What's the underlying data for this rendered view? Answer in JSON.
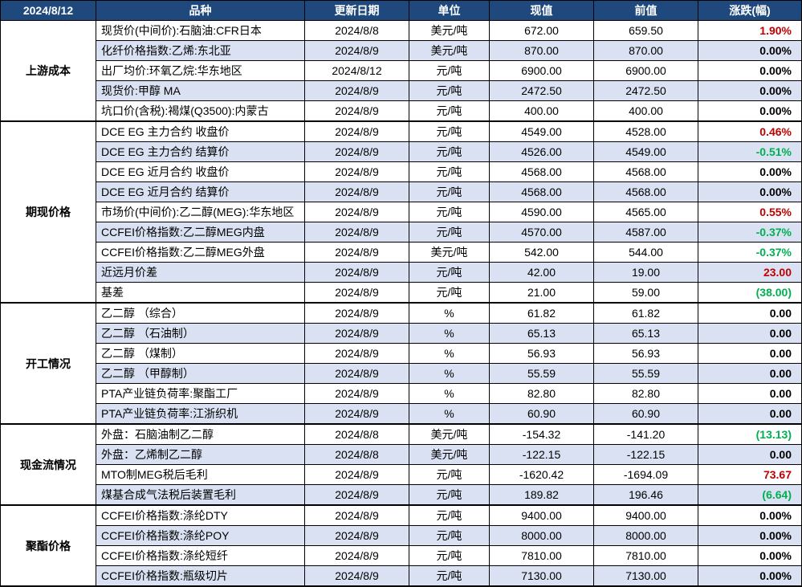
{
  "header": {
    "date": "2024/8/12",
    "cols": [
      "品种",
      "更新日期",
      "单位",
      "现值",
      "前值",
      "涨跌(幅)"
    ]
  },
  "colors": {
    "header_bg": "#1f497d",
    "header_fg": "#ffffff",
    "row_even": "#ffffff",
    "row_odd": "#d9e1f2",
    "up": "#c00000",
    "down": "#00b050",
    "flat": "#000000"
  },
  "groups": [
    {
      "cat": "上游成本",
      "rows": [
        {
          "name": "现货价(中间价):石脑油:CFR日本",
          "date": "2024/8/8",
          "unit": "美元/吨",
          "cur": "672.00",
          "prev": "659.50",
          "chg": "1.90%",
          "dir": "up"
        },
        {
          "name": "化纤价格指数:乙烯:东北亚",
          "date": "2024/8/9",
          "unit": "美元/吨",
          "cur": "870.00",
          "prev": "870.00",
          "chg": "0.00%",
          "dir": "flat"
        },
        {
          "name": "出厂均价:环氧乙烷:华东地区",
          "date": "2024/8/12",
          "unit": "元/吨",
          "cur": "6900.00",
          "prev": "6900.00",
          "chg": "0.00%",
          "dir": "flat"
        },
        {
          "name": "现货价:甲醇 MA",
          "date": "2024/8/9",
          "unit": "元/吨",
          "cur": "2472.50",
          "prev": "2472.50",
          "chg": "0.00%",
          "dir": "flat"
        },
        {
          "name": "坑口价(含税):褐煤(Q3500):内蒙古",
          "date": "2024/8/9",
          "unit": "元/吨",
          "cur": "400.00",
          "prev": "400.00",
          "chg": "0.00%",
          "dir": "flat"
        }
      ]
    },
    {
      "cat": "期现价格",
      "rows": [
        {
          "name": "DCE EG 主力合约 收盘价",
          "date": "2024/8/9",
          "unit": "元/吨",
          "cur": "4549.00",
          "prev": "4528.00",
          "chg": "0.46%",
          "dir": "up"
        },
        {
          "name": "DCE EG 主力合约 结算价",
          "date": "2024/8/9",
          "unit": "元/吨",
          "cur": "4526.00",
          "prev": "4549.00",
          "chg": "-0.51%",
          "dir": "down"
        },
        {
          "name": "DCE EG 近月合约 收盘价",
          "date": "2024/8/9",
          "unit": "元/吨",
          "cur": "4568.00",
          "prev": "4568.00",
          "chg": "0.00%",
          "dir": "flat"
        },
        {
          "name": "DCE EG 近月合约 结算价",
          "date": "2024/8/9",
          "unit": "元/吨",
          "cur": "4568.00",
          "prev": "4568.00",
          "chg": "0.00%",
          "dir": "flat"
        },
        {
          "name": "市场价(中间价):乙二醇(MEG):华东地区",
          "date": "2024/8/9",
          "unit": "元/吨",
          "cur": "4590.00",
          "prev": "4565.00",
          "chg": "0.55%",
          "dir": "up"
        },
        {
          "name": "CCFEI价格指数:乙二醇MEG内盘",
          "date": "2024/8/9",
          "unit": "元/吨",
          "cur": "4570.00",
          "prev": "4587.00",
          "chg": "-0.37%",
          "dir": "down"
        },
        {
          "name": "CCFEI价格指数:乙二醇MEG外盘",
          "date": "2024/8/9",
          "unit": "美元/吨",
          "cur": "542.00",
          "prev": "544.00",
          "chg": "-0.37%",
          "dir": "down"
        },
        {
          "name": "近远月价差",
          "date": "2024/8/9",
          "unit": "元/吨",
          "cur": "42.00",
          "prev": "19.00",
          "chg": "23.00",
          "dir": "up"
        },
        {
          "name": "基差",
          "date": "2024/8/9",
          "unit": "元/吨",
          "cur": "21.00",
          "prev": "59.00",
          "chg": "(38.00)",
          "dir": "down"
        }
      ]
    },
    {
      "cat": "开工情况",
      "rows": [
        {
          "name": "乙二醇 （综合）",
          "date": "2024/8/9",
          "unit": "%",
          "cur": "61.82",
          "prev": "61.82",
          "chg": "0.00",
          "dir": "flat"
        },
        {
          "name": "乙二醇 （石油制）",
          "date": "2024/8/9",
          "unit": "%",
          "cur": "65.13",
          "prev": "65.13",
          "chg": "0.00",
          "dir": "flat"
        },
        {
          "name": "乙二醇 （煤制）",
          "date": "2024/8/9",
          "unit": "%",
          "cur": "56.93",
          "prev": "56.93",
          "chg": "0.00",
          "dir": "flat"
        },
        {
          "name": "乙二醇 （甲醇制）",
          "date": "2024/8/9",
          "unit": "%",
          "cur": "55.59",
          "prev": "55.59",
          "chg": "0.00",
          "dir": "flat"
        },
        {
          "name": "PTA产业链负荷率:聚酯工厂",
          "date": "2024/8/9",
          "unit": "%",
          "cur": "82.80",
          "prev": "82.80",
          "chg": "0.00",
          "dir": "flat"
        },
        {
          "name": "PTA产业链负荷率:江浙织机",
          "date": "2024/8/9",
          "unit": "%",
          "cur": "60.90",
          "prev": "60.90",
          "chg": "0.00",
          "dir": "flat"
        }
      ]
    },
    {
      "cat": "现金流情况",
      "rows": [
        {
          "name": "外盘：石脑油制乙二醇",
          "date": "2024/8/8",
          "unit": "美元/吨",
          "cur": "-154.32",
          "prev": "-141.20",
          "chg": "(13.13)",
          "dir": "down"
        },
        {
          "name": "外盘：乙烯制乙二醇",
          "date": "2024/8/8",
          "unit": "美元/吨",
          "cur": "-122.15",
          "prev": "-122.15",
          "chg": "0.00",
          "dir": "flat"
        },
        {
          "name": "MTO制MEG税后毛利",
          "date": "2024/8/9",
          "unit": "元/吨",
          "cur": "-1620.42",
          "prev": "-1694.09",
          "chg": "73.67",
          "dir": "up"
        },
        {
          "name": "煤基合成气法税后装置毛利",
          "date": "2024/8/9",
          "unit": "元/吨",
          "cur": "189.82",
          "prev": "196.46",
          "chg": "(6.64)",
          "dir": "down"
        }
      ]
    },
    {
      "cat": "聚酯价格",
      "rows": [
        {
          "name": "CCFEI价格指数:涤纶DTY",
          "date": "2024/8/9",
          "unit": "元/吨",
          "cur": "9400.00",
          "prev": "9400.00",
          "chg": "0.00%",
          "dir": "flat"
        },
        {
          "name": "CCFEI价格指数:涤纶POY",
          "date": "2024/8/9",
          "unit": "元/吨",
          "cur": "8000.00",
          "prev": "8000.00",
          "chg": "0.00%",
          "dir": "flat"
        },
        {
          "name": "CCFEI价格指数:涤纶短纤",
          "date": "2024/8/9",
          "unit": "元/吨",
          "cur": "7810.00",
          "prev": "7810.00",
          "chg": "0.00%",
          "dir": "flat"
        },
        {
          "name": "CCFEI价格指数:瓶级切片",
          "date": "2024/8/9",
          "unit": "元/吨",
          "cur": "7130.00",
          "prev": "7130.00",
          "chg": "0.00%",
          "dir": "flat"
        }
      ]
    }
  ]
}
